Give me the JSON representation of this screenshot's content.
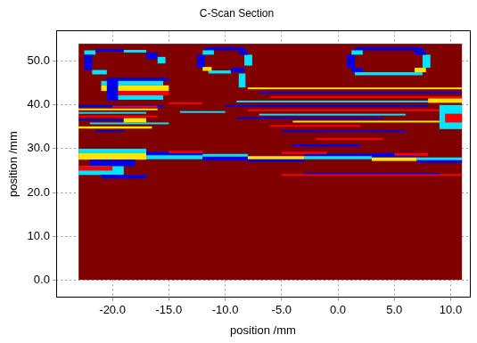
{
  "chart_data": {
    "type": "heatmap",
    "title": "C-Scan Section",
    "x_label": "position /mm",
    "y_label": "position /mm",
    "xlim": [
      -25,
      11.7
    ],
    "ylim": [
      -4,
      57
    ],
    "xticks": [
      {
        "value": -20,
        "label": "-20.0"
      },
      {
        "value": -15,
        "label": "-15.0"
      },
      {
        "value": -10,
        "label": "-10.0"
      },
      {
        "value": -5,
        "label": "-5.0"
      },
      {
        "value": 0,
        "label": "0.0"
      },
      {
        "value": 5,
        "label": "5.0"
      },
      {
        "value": 10,
        "label": "10.0"
      }
    ],
    "yticks": [
      {
        "value": 0,
        "label": "0.0"
      },
      {
        "value": 10,
        "label": "10.0"
      },
      {
        "value": 20,
        "label": "20.0"
      },
      {
        "value": 30,
        "label": "30.0"
      },
      {
        "value": 40,
        "label": "40.0"
      },
      {
        "value": 50,
        "label": "50.0"
      }
    ],
    "grid": true,
    "zlim": [
      0,
      1
    ],
    "cells": [
      [
        -23,
        11,
        0,
        54,
        1
      ],
      [
        -22.5,
        -21.5,
        51.5,
        52.5,
        0.35
      ],
      [
        -21.5,
        -19,
        52.2,
        52.8,
        0.1
      ],
      [
        -19,
        -17,
        52,
        52.6,
        0.35
      ],
      [
        -17,
        -16,
        50.5,
        52,
        0.1
      ],
      [
        -16,
        -15.3,
        49.5,
        51,
        0.35
      ],
      [
        -22.5,
        -21.8,
        48,
        51.5,
        0.1
      ],
      [
        -21.8,
        -20.5,
        47,
        48,
        0.35
      ],
      [
        -20.5,
        -15,
        45.5,
        46.2,
        0.1
      ],
      [
        -21,
        -15.5,
        44.5,
        45.5,
        0.35
      ],
      [
        -21,
        -15,
        43.2,
        44.5,
        0.65
      ],
      [
        -20.5,
        -15,
        42.2,
        43.2,
        0.88
      ],
      [
        -20,
        -15.5,
        41.2,
        42.2,
        0.35
      ],
      [
        -20.5,
        -19.5,
        41,
        46,
        0.1
      ],
      [
        -23,
        -15.5,
        39.5,
        40,
        0.1
      ],
      [
        -23,
        -16,
        38.8,
        39.2,
        0.65
      ],
      [
        -23,
        -17,
        38,
        38.4,
        0.35
      ],
      [
        -23,
        -16,
        37.2,
        37.6,
        0.88
      ],
      [
        -23,
        -17.5,
        36.4,
        36.8,
        0.1
      ],
      [
        -22,
        -15,
        35.6,
        36,
        0.35
      ],
      [
        -23,
        -16.5,
        34.6,
        35.1,
        0.65
      ],
      [
        -21.5,
        -19,
        33.8,
        34.2,
        0.1
      ],
      [
        -20,
        -16,
        39.4,
        39.8,
        0.88
      ],
      [
        -19,
        -17,
        36,
        37,
        0.65
      ],
      [
        -12.5,
        -11.8,
        48.5,
        51.5,
        0.1
      ],
      [
        -8.3,
        -7.6,
        49,
        51.5,
        0.35
      ],
      [
        -11.8,
        -8.3,
        52.5,
        53.2,
        0.1
      ],
      [
        -11.5,
        -9.5,
        47.2,
        47.9,
        0.35
      ],
      [
        -9.5,
        -8.3,
        47.5,
        48.5,
        0.1
      ],
      [
        -12,
        -11,
        51.5,
        52.5,
        0.35
      ],
      [
        -8.8,
        -8,
        51.5,
        52.5,
        0.1
      ],
      [
        -12,
        -11.2,
        47.8,
        48.7,
        0.65
      ],
      [
        -8.8,
        -8.2,
        44,
        47.2,
        0.35
      ],
      [
        -8,
        11,
        43.6,
        44,
        0.65
      ],
      [
        -7,
        11,
        42.6,
        43,
        0.1
      ],
      [
        -6,
        11,
        41.6,
        42,
        0.88
      ],
      [
        -9,
        9,
        40.6,
        41,
        0.35
      ],
      [
        -10,
        8,
        39.6,
        40,
        0.1
      ],
      [
        -8,
        10,
        38.6,
        39,
        0.88
      ],
      [
        -7,
        6,
        37.6,
        38,
        0.35
      ],
      [
        -9,
        4,
        36.8,
        37.2,
        0.1
      ],
      [
        -4,
        11,
        36,
        36.4,
        0.65
      ],
      [
        -6,
        2,
        35,
        35.4,
        0.88
      ],
      [
        -5,
        6,
        33.8,
        34.2,
        0.1
      ],
      [
        -14,
        -10,
        38.2,
        38.6,
        0.35
      ],
      [
        -15,
        -12,
        40.2,
        40.6,
        0.88
      ],
      [
        9,
        11,
        34.5,
        40,
        0.35
      ],
      [
        9.5,
        11,
        36,
        38,
        0.88
      ],
      [
        8,
        11,
        40.5,
        41.5,
        0.65
      ],
      [
        0.8,
        1.5,
        48.5,
        51.5,
        0.1
      ],
      [
        7.5,
        8.2,
        48.5,
        51.5,
        0.35
      ],
      [
        1.5,
        7.5,
        52.5,
        53.2,
        0.1
      ],
      [
        1.5,
        7.5,
        46.8,
        47.5,
        0.35
      ],
      [
        1.2,
        2.2,
        51.5,
        52.5,
        0.35
      ],
      [
        6.8,
        7.8,
        51.5,
        52.5,
        0.1
      ],
      [
        1.2,
        2.2,
        47.5,
        48.5,
        0.1
      ],
      [
        6.8,
        7.8,
        47.5,
        48.5,
        0.65
      ],
      [
        -23,
        -17,
        29,
        30,
        0.35
      ],
      [
        -23,
        -17,
        27.5,
        29,
        0.65
      ],
      [
        -22,
        -18,
        26,
        27.5,
        0.1
      ],
      [
        -23,
        -19,
        24,
        26,
        0.35
      ],
      [
        -21,
        -17,
        23.2,
        24,
        0.1
      ],
      [
        -23,
        -20,
        25,
        26,
        0.88
      ],
      [
        -17,
        -12,
        28.5,
        29.3,
        0.1
      ],
      [
        -17,
        -12,
        27.6,
        28.5,
        0.35
      ],
      [
        -12,
        -8,
        27.3,
        28.2,
        0.1
      ],
      [
        -12,
        -8,
        28.2,
        28.8,
        0.35
      ],
      [
        -8,
        -3,
        27,
        27.6,
        0.1
      ],
      [
        -8,
        -3,
        27.6,
        28.3,
        0.65
      ],
      [
        -3,
        3,
        28.3,
        28.9,
        0.1
      ],
      [
        -3,
        3,
        27.6,
        28.3,
        0.35
      ],
      [
        3,
        7,
        28,
        29,
        0.1
      ],
      [
        3,
        7,
        27.2,
        28,
        0.65
      ],
      [
        7,
        11,
        26.8,
        27.4,
        0.1
      ],
      [
        7,
        11,
        27.4,
        28,
        0.35
      ],
      [
        -15,
        -12,
        29,
        29.5,
        0.88
      ],
      [
        -5,
        -1,
        28.8,
        29.3,
        0.88
      ],
      [
        5,
        8,
        28.4,
        29,
        0.88
      ],
      [
        -5,
        11,
        23.8,
        24.2,
        0.88
      ],
      [
        -3,
        9,
        24.2,
        24.5,
        0.1
      ],
      [
        -4,
        2,
        30.5,
        31,
        0.1
      ],
      [
        -2,
        4,
        32,
        32.4,
        0.88
      ]
    ]
  }
}
